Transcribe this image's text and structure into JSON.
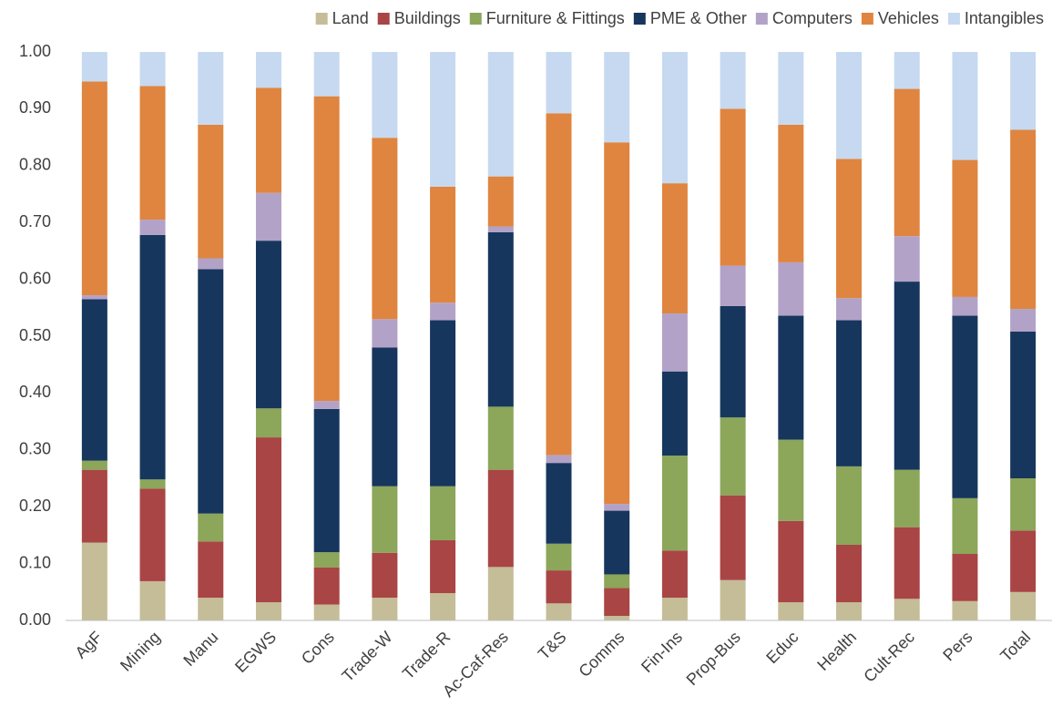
{
  "chart_data": {
    "type": "stacked-bar",
    "categories": [
      "AgF",
      "Mining",
      "Manu",
      "EGWS",
      "Cons",
      "Trade-W",
      "Trade-R",
      "Ac-Caf-Res",
      "T&S",
      "Comms",
      "Fin-Ins",
      "Prop-Bus",
      "Educ",
      "Health",
      "Cult-Rec",
      "Pers",
      "Total"
    ],
    "series": [
      {
        "name": "Land",
        "color": "#c4bd97",
        "values": [
          0.137,
          0.069,
          0.04,
          0.032,
          0.028,
          0.04,
          0.048,
          0.094,
          0.03,
          0.008,
          0.04,
          0.071,
          0.032,
          0.032,
          0.038,
          0.034,
          0.05
        ]
      },
      {
        "name": "Buildings",
        "color": "#a94545",
        "values": [
          0.128,
          0.163,
          0.099,
          0.29,
          0.065,
          0.079,
          0.093,
          0.171,
          0.058,
          0.049,
          0.083,
          0.149,
          0.143,
          0.101,
          0.126,
          0.083,
          0.108
        ]
      },
      {
        "name": "Furniture & Fittings",
        "color": "#8ca65a",
        "values": [
          0.016,
          0.016,
          0.049,
          0.051,
          0.027,
          0.117,
          0.095,
          0.111,
          0.047,
          0.024,
          0.167,
          0.137,
          0.143,
          0.138,
          0.101,
          0.098,
          0.092
        ]
      },
      {
        "name": "PME & Other",
        "color": "#17365d",
        "values": [
          0.284,
          0.43,
          0.43,
          0.295,
          0.252,
          0.244,
          0.292,
          0.307,
          0.142,
          0.112,
          0.148,
          0.196,
          0.218,
          0.257,
          0.331,
          0.321,
          0.258
        ]
      },
      {
        "name": "Computers",
        "color": "#b3a2c7",
        "values": [
          0.007,
          0.027,
          0.019,
          0.084,
          0.014,
          0.05,
          0.031,
          0.01,
          0.014,
          0.012,
          0.102,
          0.071,
          0.094,
          0.039,
          0.08,
          0.033,
          0.04
        ]
      },
      {
        "name": "Vehicles",
        "color": "#df853f",
        "values": [
          0.376,
          0.235,
          0.235,
          0.185,
          0.536,
          0.319,
          0.204,
          0.088,
          0.601,
          0.636,
          0.229,
          0.276,
          0.242,
          0.245,
          0.259,
          0.241,
          0.315
        ]
      },
      {
        "name": "Intangibles",
        "color": "#c6d9f1",
        "values": [
          0.052,
          0.06,
          0.128,
          0.063,
          0.078,
          0.151,
          0.237,
          0.219,
          0.108,
          0.159,
          0.231,
          0.1,
          0.128,
          0.188,
          0.065,
          0.19,
          0.137
        ]
      }
    ],
    "ylim": [
      0,
      1
    ],
    "yticks": [
      {
        "value": 0,
        "label": "0.00"
      },
      {
        "value": 0.1,
        "label": "0.10"
      },
      {
        "value": 0.2,
        "label": "0.20"
      },
      {
        "value": 0.3,
        "label": "0.30"
      },
      {
        "value": 0.4,
        "label": "0.40"
      },
      {
        "value": 0.5,
        "label": "0.50"
      },
      {
        "value": 0.6,
        "label": "0.60"
      },
      {
        "value": 0.7,
        "label": "0.70"
      },
      {
        "value": 0.8,
        "label": "0.80"
      },
      {
        "value": 0.9,
        "label": "0.90"
      },
      {
        "value": 1,
        "label": "1.00"
      }
    ],
    "legend": "top",
    "grid": false
  }
}
